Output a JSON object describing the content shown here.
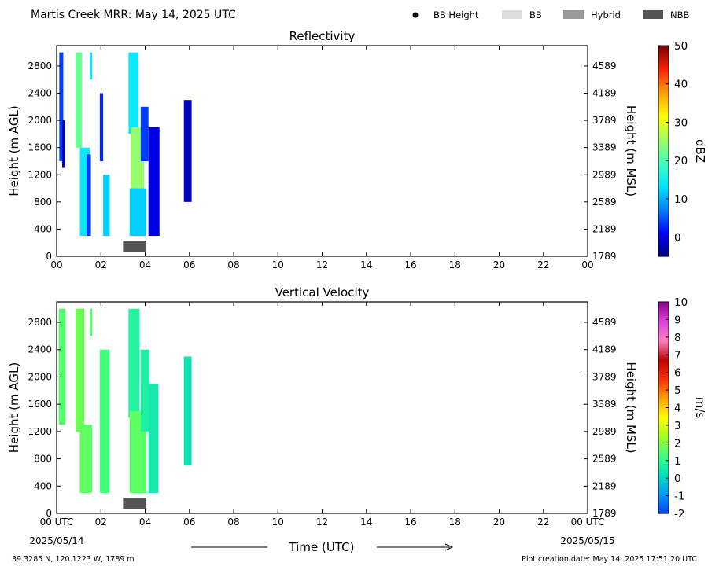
{
  "header": {
    "title": "Martis Creek MRR:  May 14, 2025 UTC",
    "legend": [
      {
        "label": "BB Height",
        "kind": "dot",
        "color": "#000000"
      },
      {
        "label": "BB",
        "kind": "box",
        "color": "#dddddd"
      },
      {
        "label": "Hybrid",
        "kind": "box",
        "color": "#999999"
      },
      {
        "label": "NBB",
        "kind": "box",
        "color": "#555555"
      }
    ]
  },
  "footer": {
    "time_label": "Time (UTC)",
    "date_start": "2025/05/14",
    "date_end": "2025/05/15",
    "location": "39.3285 N, 120.1223 W, 1789 m",
    "creation": "Plot creation date: May 14, 2025 17:51:20 UTC"
  },
  "chart_data": [
    {
      "type": "heatmap",
      "title": "Reflectivity",
      "xlabel": "",
      "ylabel": "Height (m AGL)",
      "ylabel_right": "Height (m MSL)",
      "xlim": [
        0,
        24
      ],
      "ylim": [
        0,
        3100
      ],
      "xticks": [
        "00",
        "02",
        "04",
        "06",
        "08",
        "10",
        "12",
        "14",
        "16",
        "18",
        "20",
        "22",
        "00"
      ],
      "yticks": [
        0,
        400,
        800,
        1200,
        1600,
        2000,
        2400,
        2800
      ],
      "yticks_right": [
        "1789",
        "2189",
        "2589",
        "2989",
        "3389",
        "3789",
        "4189",
        "4589"
      ],
      "colorbar": {
        "label": "dBZ",
        "range": [
          -5,
          50
        ],
        "ticks": [
          0,
          10,
          20,
          30,
          40,
          50
        ],
        "colormap": [
          "#00007f",
          "#0000ff",
          "#0080ff",
          "#00e5ff",
          "#40ffbf",
          "#9fff60",
          "#ffff00",
          "#ff9f00",
          "#ff2000",
          "#7f0000"
        ]
      },
      "echoes": [
        {
          "t0": 0.12,
          "t1": 0.3,
          "h0": 1400,
          "h1": 3000,
          "value": 4
        },
        {
          "t0": 0.25,
          "t1": 0.38,
          "h0": 1300,
          "h1": 2000,
          "value": -3
        },
        {
          "t0": 0.85,
          "t1": 1.15,
          "h0": 1600,
          "h1": 3000,
          "value": 22
        },
        {
          "t0": 1.05,
          "t1": 1.5,
          "h0": 300,
          "h1": 1600,
          "value": 14
        },
        {
          "t0": 1.35,
          "t1": 1.55,
          "h0": 300,
          "h1": 1500,
          "value": 4
        },
        {
          "t0": 1.5,
          "t1": 1.6,
          "h0": 2600,
          "h1": 3000,
          "value": 14
        },
        {
          "t0": 1.95,
          "t1": 2.1,
          "h0": 1400,
          "h1": 2400,
          "value": 3
        },
        {
          "t0": 2.1,
          "t1": 2.4,
          "h0": 300,
          "h1": 1200,
          "value": 12
        },
        {
          "t0": 3.25,
          "t1": 3.7,
          "h0": 1800,
          "h1": 3000,
          "value": 14
        },
        {
          "t0": 3.35,
          "t1": 3.95,
          "h0": 900,
          "h1": 1900,
          "value": 25
        },
        {
          "t0": 3.3,
          "t1": 4.05,
          "h0": 300,
          "h1": 1000,
          "value": 12
        },
        {
          "t0": 3.8,
          "t1": 4.15,
          "h0": 1400,
          "h1": 2200,
          "value": 4
        },
        {
          "t0": 4.15,
          "t1": 4.65,
          "h0": 300,
          "h1": 1900,
          "value": 0
        },
        {
          "t0": 5.75,
          "t1": 6.1,
          "h0": 800,
          "h1": 2300,
          "value": -2
        }
      ],
      "bright_band": [
        {
          "start": 3.0,
          "end": 4.05,
          "kind": "NBB"
        }
      ]
    },
    {
      "type": "heatmap",
      "title": "Vertical Velocity",
      "xlabel": "Time (UTC)",
      "ylabel": "Height (m AGL)",
      "ylabel_right": "Height (m MSL)",
      "xlim": [
        0,
        24
      ],
      "ylim": [
        0,
        3100
      ],
      "xticks": [
        "00 UTC",
        "02",
        "04",
        "06",
        "08",
        "10",
        "12",
        "14",
        "16",
        "18",
        "20",
        "22",
        "00 UTC"
      ],
      "yticks": [
        0,
        400,
        800,
        1200,
        1600,
        2000,
        2400,
        2800
      ],
      "yticks_right": [
        "1789",
        "2189",
        "2589",
        "2989",
        "3389",
        "3789",
        "4189",
        "4589"
      ],
      "colorbar": {
        "label": "m/s",
        "range": [
          -2,
          10
        ],
        "ticks": [
          -2,
          -1,
          0,
          1,
          2,
          3,
          4,
          5,
          6,
          7,
          8,
          9,
          10
        ],
        "colormap": [
          "#0040ff",
          "#0099ff",
          "#00e0c0",
          "#40ff80",
          "#a0ff20",
          "#ffff00",
          "#ffa000",
          "#ff3000",
          "#c00000",
          "#ff80c0",
          "#e040e0",
          "#900090"
        ]
      },
      "echoes": [
        {
          "t0": 0.1,
          "t1": 0.4,
          "h0": 1300,
          "h1": 3000,
          "value": 1.5
        },
        {
          "t0": 0.85,
          "t1": 1.25,
          "h0": 1200,
          "h1": 3000,
          "value": 1.8
        },
        {
          "t0": 1.05,
          "t1": 1.6,
          "h0": 300,
          "h1": 1300,
          "value": 1.6
        },
        {
          "t0": 1.5,
          "t1": 1.6,
          "h0": 2600,
          "h1": 3000,
          "value": 1.5
        },
        {
          "t0": 1.95,
          "t1": 2.4,
          "h0": 300,
          "h1": 2400,
          "value": 1.3
        },
        {
          "t0": 3.25,
          "t1": 3.75,
          "h0": 1400,
          "h1": 3000,
          "value": 0.8
        },
        {
          "t0": 3.3,
          "t1": 4.05,
          "h0": 300,
          "h1": 1500,
          "value": 1.6
        },
        {
          "t0": 3.8,
          "t1": 4.2,
          "h0": 1200,
          "h1": 2400,
          "value": 0.7
        },
        {
          "t0": 4.15,
          "t1": 4.6,
          "h0": 300,
          "h1": 1900,
          "value": 0.5
        },
        {
          "t0": 5.75,
          "t1": 6.1,
          "h0": 700,
          "h1": 2300,
          "value": 0.4
        }
      ],
      "bright_band": [
        {
          "start": 3.0,
          "end": 4.05,
          "kind": "NBB"
        }
      ]
    }
  ]
}
